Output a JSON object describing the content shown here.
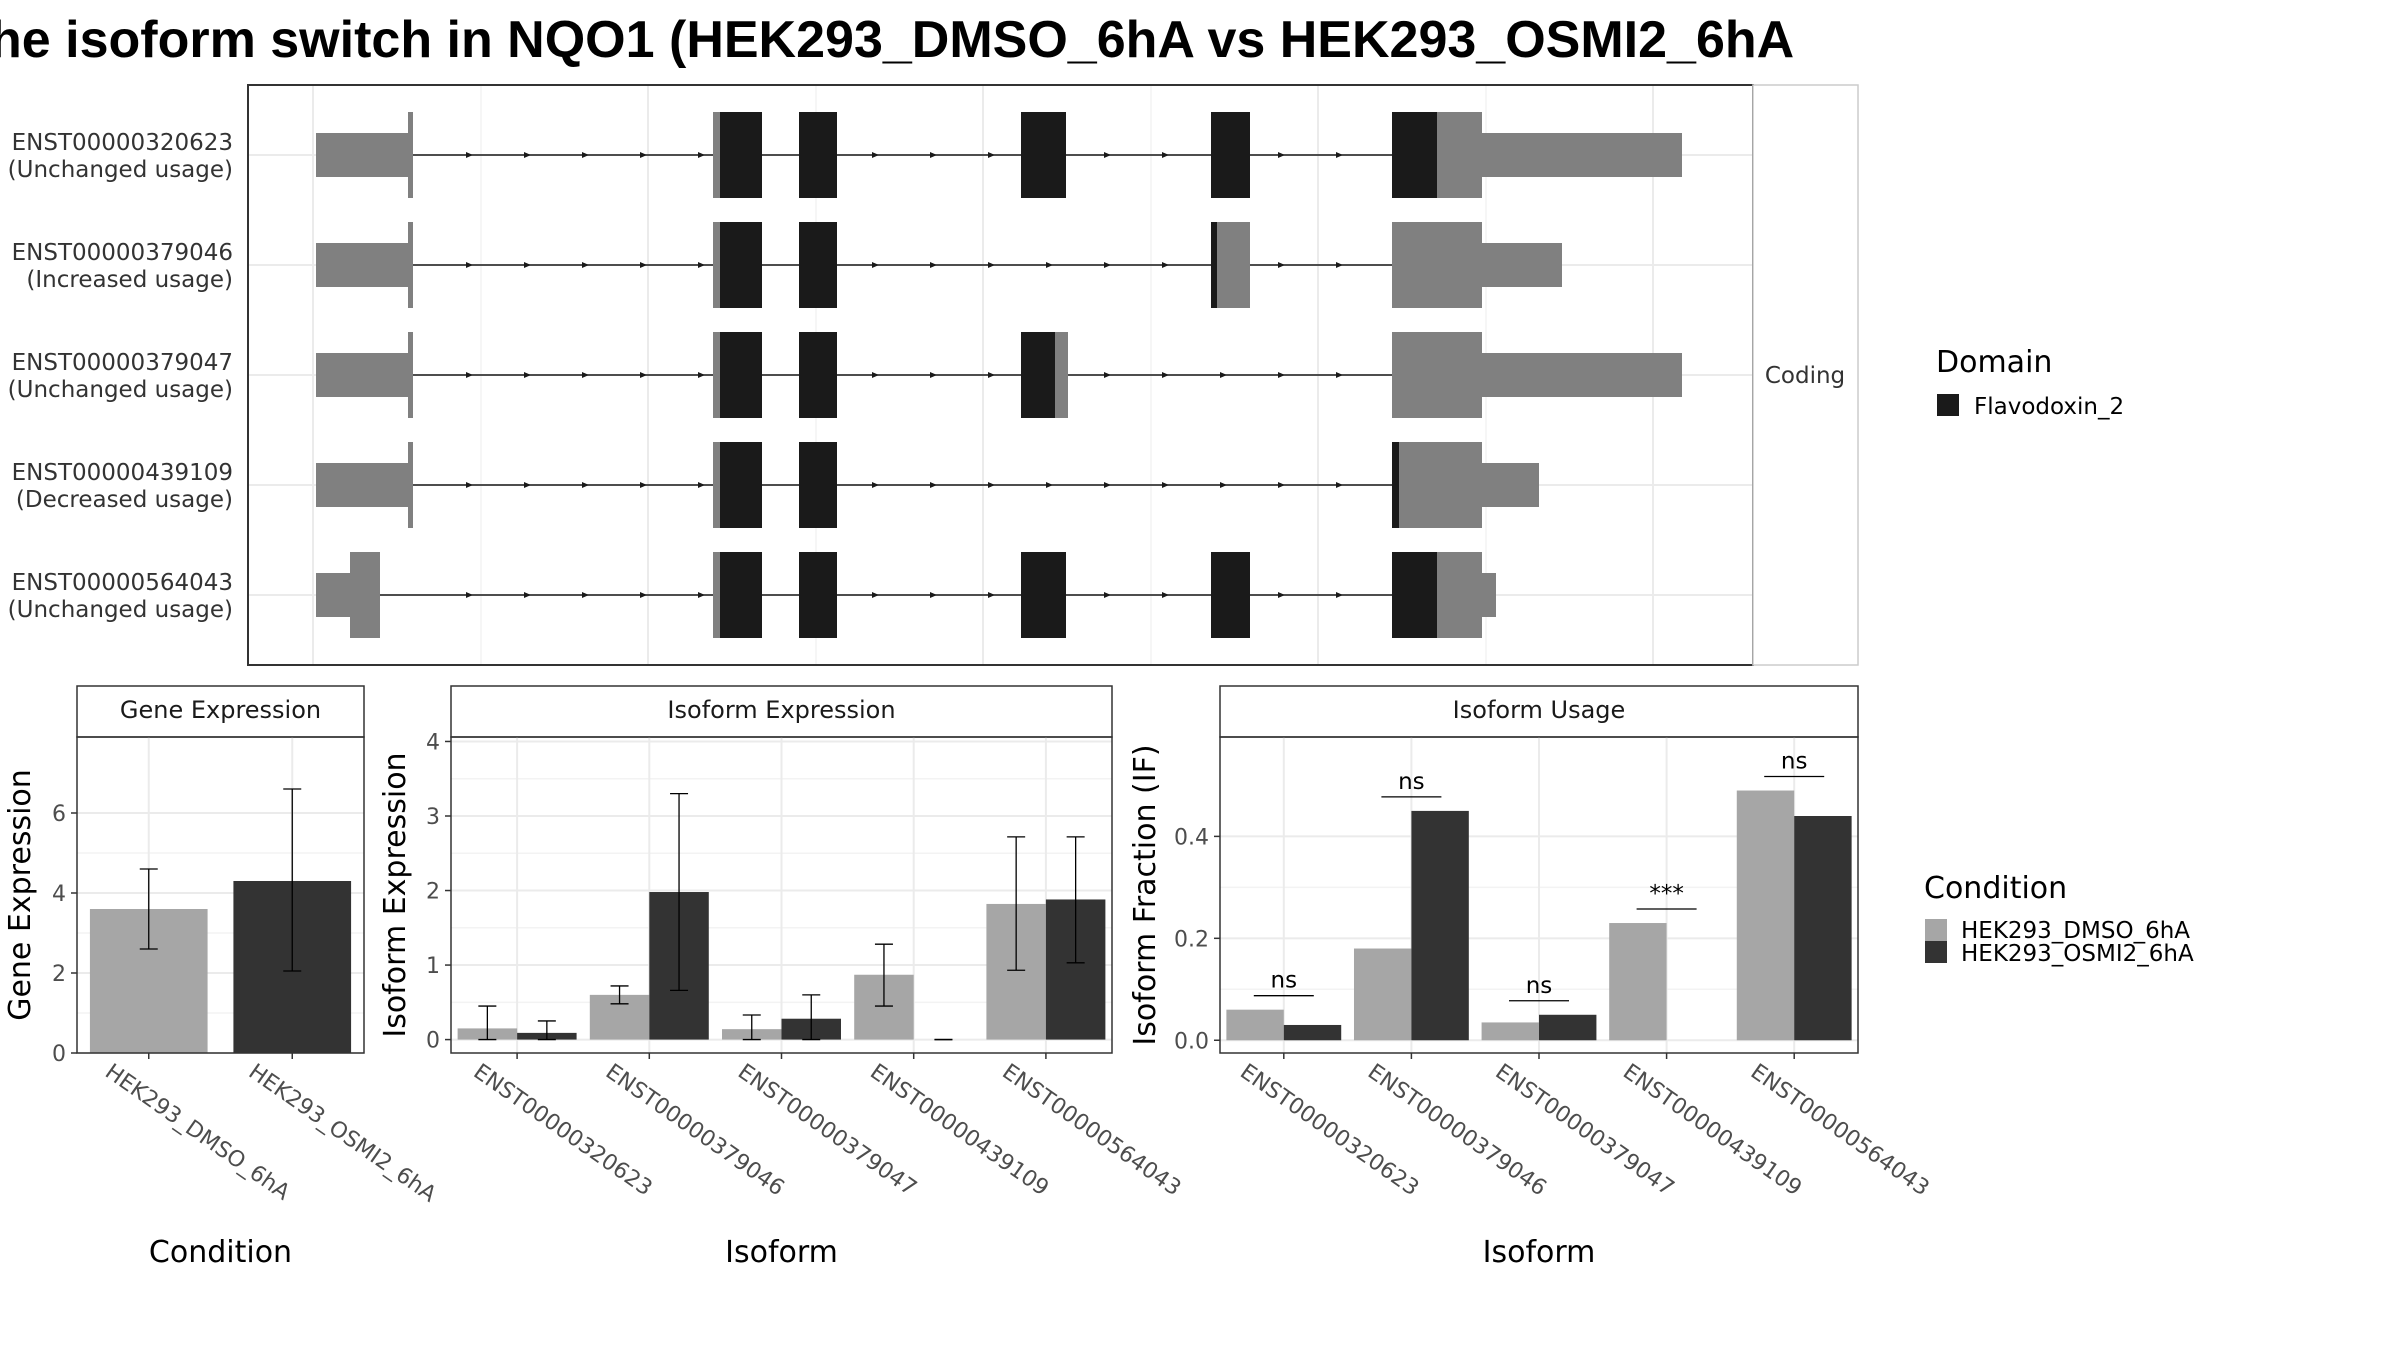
{
  "figure": {
    "title": "he isoform switch in NQO1 (HEK293_DMSO_6hA vs HEK293_OSMI2_6hA",
    "facet_label": "Coding",
    "domain_legend": {
      "title": "Domain",
      "entries": [
        "Flavodoxin_2"
      ]
    },
    "condition_legend": {
      "title": "Condition",
      "entries": [
        "HEK293_DMSO_6hA",
        "HEK293_OSMI2_6hA"
      ]
    },
    "colors": {
      "dmso": "#a6a6a6",
      "osmi2": "#333333",
      "domain": "#1a1a1a",
      "utr": "#808080",
      "grid": "#ebebeb"
    }
  },
  "chart_data": [
    {
      "type": "other",
      "title": "",
      "note": "transcript structure plot",
      "tracks": [
        {
          "id": "ENST00000320623",
          "usage": "(Unchanged usage)"
        },
        {
          "id": "ENST00000379046",
          "usage": "(Increased usage)"
        },
        {
          "id": "ENST00000379047",
          "usage": "(Unchanged usage)"
        },
        {
          "id": "ENST00000439109",
          "usage": "(Decreased usage)"
        },
        {
          "id": "ENST00000564043",
          "usage": "(Unchanged usage)"
        }
      ]
    },
    {
      "type": "bar",
      "title": "Gene Expression",
      "xlabel": "Condition",
      "ylabel": "Gene Expression",
      "categories": [
        "HEK293_DMSO_6hA",
        "HEK293_OSMI2_6hA"
      ],
      "values": [
        3.6,
        4.3
      ],
      "error_low": [
        2.6,
        2.05
      ],
      "error_high": [
        4.6,
        6.6
      ],
      "ylim": [
        0,
        7.9
      ],
      "yticks": [
        0,
        2,
        4,
        6
      ]
    },
    {
      "type": "bar",
      "title": "Isoform Expression",
      "xlabel": "Isoform",
      "ylabel": "Isoform Expression",
      "categories": [
        "ENST00000320623",
        "ENST00000379046",
        "ENST00000379047",
        "ENST00000439109",
        "ENST00000564043"
      ],
      "series": [
        {
          "name": "HEK293_DMSO_6hA",
          "values": [
            0.15,
            0.6,
            0.14,
            0.87,
            1.82
          ],
          "error_low": [
            0.0,
            0.48,
            0.0,
            0.45,
            0.93
          ],
          "error_high": [
            0.45,
            0.72,
            0.33,
            1.28,
            2.72
          ]
        },
        {
          "name": "HEK293_OSMI2_6hA",
          "values": [
            0.09,
            1.98,
            0.28,
            0.0,
            1.88
          ],
          "error_low": [
            0.0,
            0.66,
            0.0,
            0.0,
            1.03
          ],
          "error_high": [
            0.25,
            3.3,
            0.6,
            0.0,
            2.72
          ]
        }
      ],
      "ylim": [
        -0.18,
        4.06
      ],
      "yticks": [
        0,
        1,
        2,
        3,
        4
      ]
    },
    {
      "type": "bar",
      "title": "Isoform Usage",
      "xlabel": "Isoform",
      "ylabel": "Isoform Fraction (IF)",
      "categories": [
        "ENST00000320623",
        "ENST00000379046",
        "ENST00000379047",
        "ENST00000439109",
        "ENST00000564043"
      ],
      "series": [
        {
          "name": "HEK293_DMSO_6hA",
          "values": [
            0.06,
            0.18,
            0.035,
            0.23,
            0.49
          ]
        },
        {
          "name": "HEK293_OSMI2_6hA",
          "values": [
            0.03,
            0.45,
            0.05,
            0.0,
            0.44
          ]
        }
      ],
      "significance": [
        "ns",
        "ns",
        "ns",
        "***",
        "ns"
      ],
      "ylim": [
        -0.025,
        0.595
      ],
      "yticks": [
        0.0,
        0.2,
        0.4
      ],
      "ytick_labels": [
        "0.0",
        "0.2",
        "0.4"
      ]
    }
  ]
}
